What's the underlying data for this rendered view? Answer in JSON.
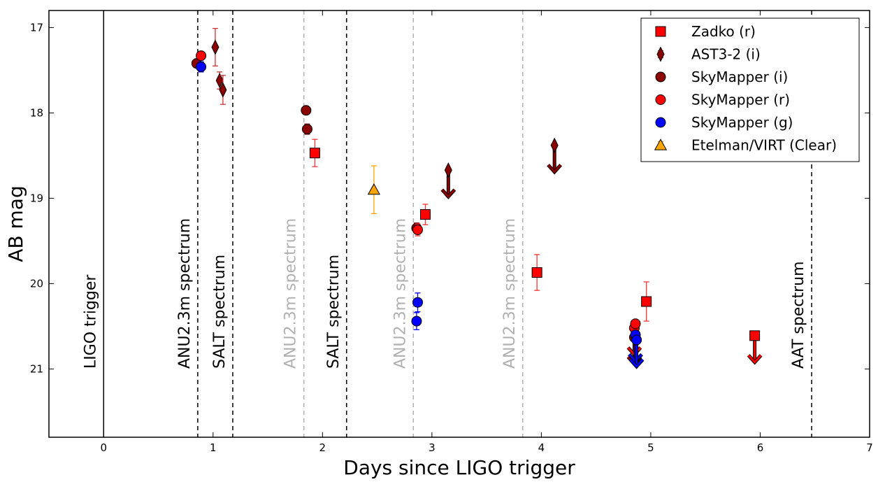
{
  "chart_data": {
    "type": "scatter",
    "xlabel": "Days since LIGO trigger",
    "ylabel": "AB mag",
    "xlim": [
      -0.5,
      7
    ],
    "ylim": [
      21.8,
      16.8
    ],
    "y_inverted": true,
    "xticks": [
      "0",
      "1",
      "2",
      "3",
      "4",
      "5",
      "6",
      "7"
    ],
    "yticks": [
      "17",
      "18",
      "19",
      "20",
      "21"
    ],
    "grid": false,
    "legend_placement": "top-right",
    "vertical_lines": [
      {
        "x": 0,
        "style": "solid",
        "color": "#000000",
        "label": "LIGO trigger"
      },
      {
        "x": 0.86,
        "style": "dashed",
        "color": "#000000",
        "label": "ANU2.3m spectrum"
      },
      {
        "x": 1.18,
        "style": "dashed",
        "color": "#000000",
        "label": "SALT spectrum"
      },
      {
        "x": 1.83,
        "style": "dashed",
        "color": "#b0b0b0",
        "label": "ANU2.3m spectrum"
      },
      {
        "x": 2.22,
        "style": "dashed",
        "color": "#000000",
        "label": "SALT spectrum"
      },
      {
        "x": 2.83,
        "style": "dashed",
        "color": "#b0b0b0",
        "label": "ANU2.3m spectrum"
      },
      {
        "x": 3.83,
        "style": "dashed",
        "color": "#b0b0b0",
        "label": "ANU2.3m spectrum"
      },
      {
        "x": 6.47,
        "style": "dashed",
        "color": "#000000",
        "label": "AAT spectrum"
      }
    ],
    "series": [
      {
        "name": "Zadko (r)",
        "marker": "square",
        "color": "#ff0000",
        "ecolor": "#ff3333",
        "points": [
          {
            "x": 1.93,
            "y": 18.47,
            "err": 0.16
          },
          {
            "x": 2.94,
            "y": 19.19,
            "err": 0.12
          },
          {
            "x": 3.96,
            "y": 19.87,
            "err": 0.21
          },
          {
            "x": 4.96,
            "y": 20.21,
            "err": 0.23
          }
        ],
        "upper_limits": [
          {
            "x": 5.95,
            "y": 20.61
          }
        ]
      },
      {
        "name": "AST3-2 (i)",
        "marker": "diamond",
        "color": "#8b0000",
        "ecolor": "#cc3333",
        "points": [
          {
            "x": 1.02,
            "y": 17.23,
            "err": 0.22
          },
          {
            "x": 1.06,
            "y": 17.62,
            "err": 0.1
          },
          {
            "x": 1.09,
            "y": 17.73,
            "err": 0.17
          }
        ],
        "upper_limits": [
          {
            "x": 3.15,
            "y": 18.67
          },
          {
            "x": 4.12,
            "y": 18.38
          }
        ]
      },
      {
        "name": "SkyMapper (i)",
        "marker": "circle",
        "color": "#8b0000",
        "ecolor": "#8b0000",
        "points": [
          {
            "x": 0.85,
            "y": 17.42,
            "err": 0.03
          },
          {
            "x": 1.85,
            "y": 17.97,
            "err": 0.05
          },
          {
            "x": 1.86,
            "y": 18.19,
            "err": 0.06
          },
          {
            "x": 2.86,
            "y": 19.35,
            "err": 0.06
          }
        ],
        "upper_limits": [
          {
            "x": 4.85,
            "y": 20.63
          }
        ]
      },
      {
        "name": "SkyMapper (r)",
        "marker": "circle",
        "color": "#ff0000",
        "ecolor": "#ff3333",
        "points": [
          {
            "x": 0.89,
            "y": 17.33,
            "err": 0.04
          },
          {
            "x": 2.87,
            "y": 19.37,
            "err": 0.07
          },
          {
            "x": 4.86,
            "y": 20.47,
            "err": 0.05
          }
        ],
        "upper_limits": [
          {
            "x": 4.85,
            "y": 20.52
          }
        ]
      },
      {
        "name": "SkyMapper (g)",
        "marker": "circle",
        "color": "#0000ff",
        "ecolor": "#0000ff",
        "points": [
          {
            "x": 0.89,
            "y": 17.46,
            "err": 0.06
          },
          {
            "x": 2.87,
            "y": 20.22,
            "err": 0.11
          },
          {
            "x": 2.86,
            "y": 20.44,
            "err": 0.1
          }
        ],
        "upper_limits": [
          {
            "x": 4.86,
            "y": 20.6
          },
          {
            "x": 4.87,
            "y": 20.66
          }
        ]
      },
      {
        "name": "Etelman/VIRT (Clear)",
        "marker": "triangle",
        "color": "#ffa500",
        "ecolor": "#ffa500",
        "points": [
          {
            "x": 2.47,
            "y": 18.9,
            "err": 0.28
          }
        ],
        "upper_limits": []
      }
    ]
  }
}
